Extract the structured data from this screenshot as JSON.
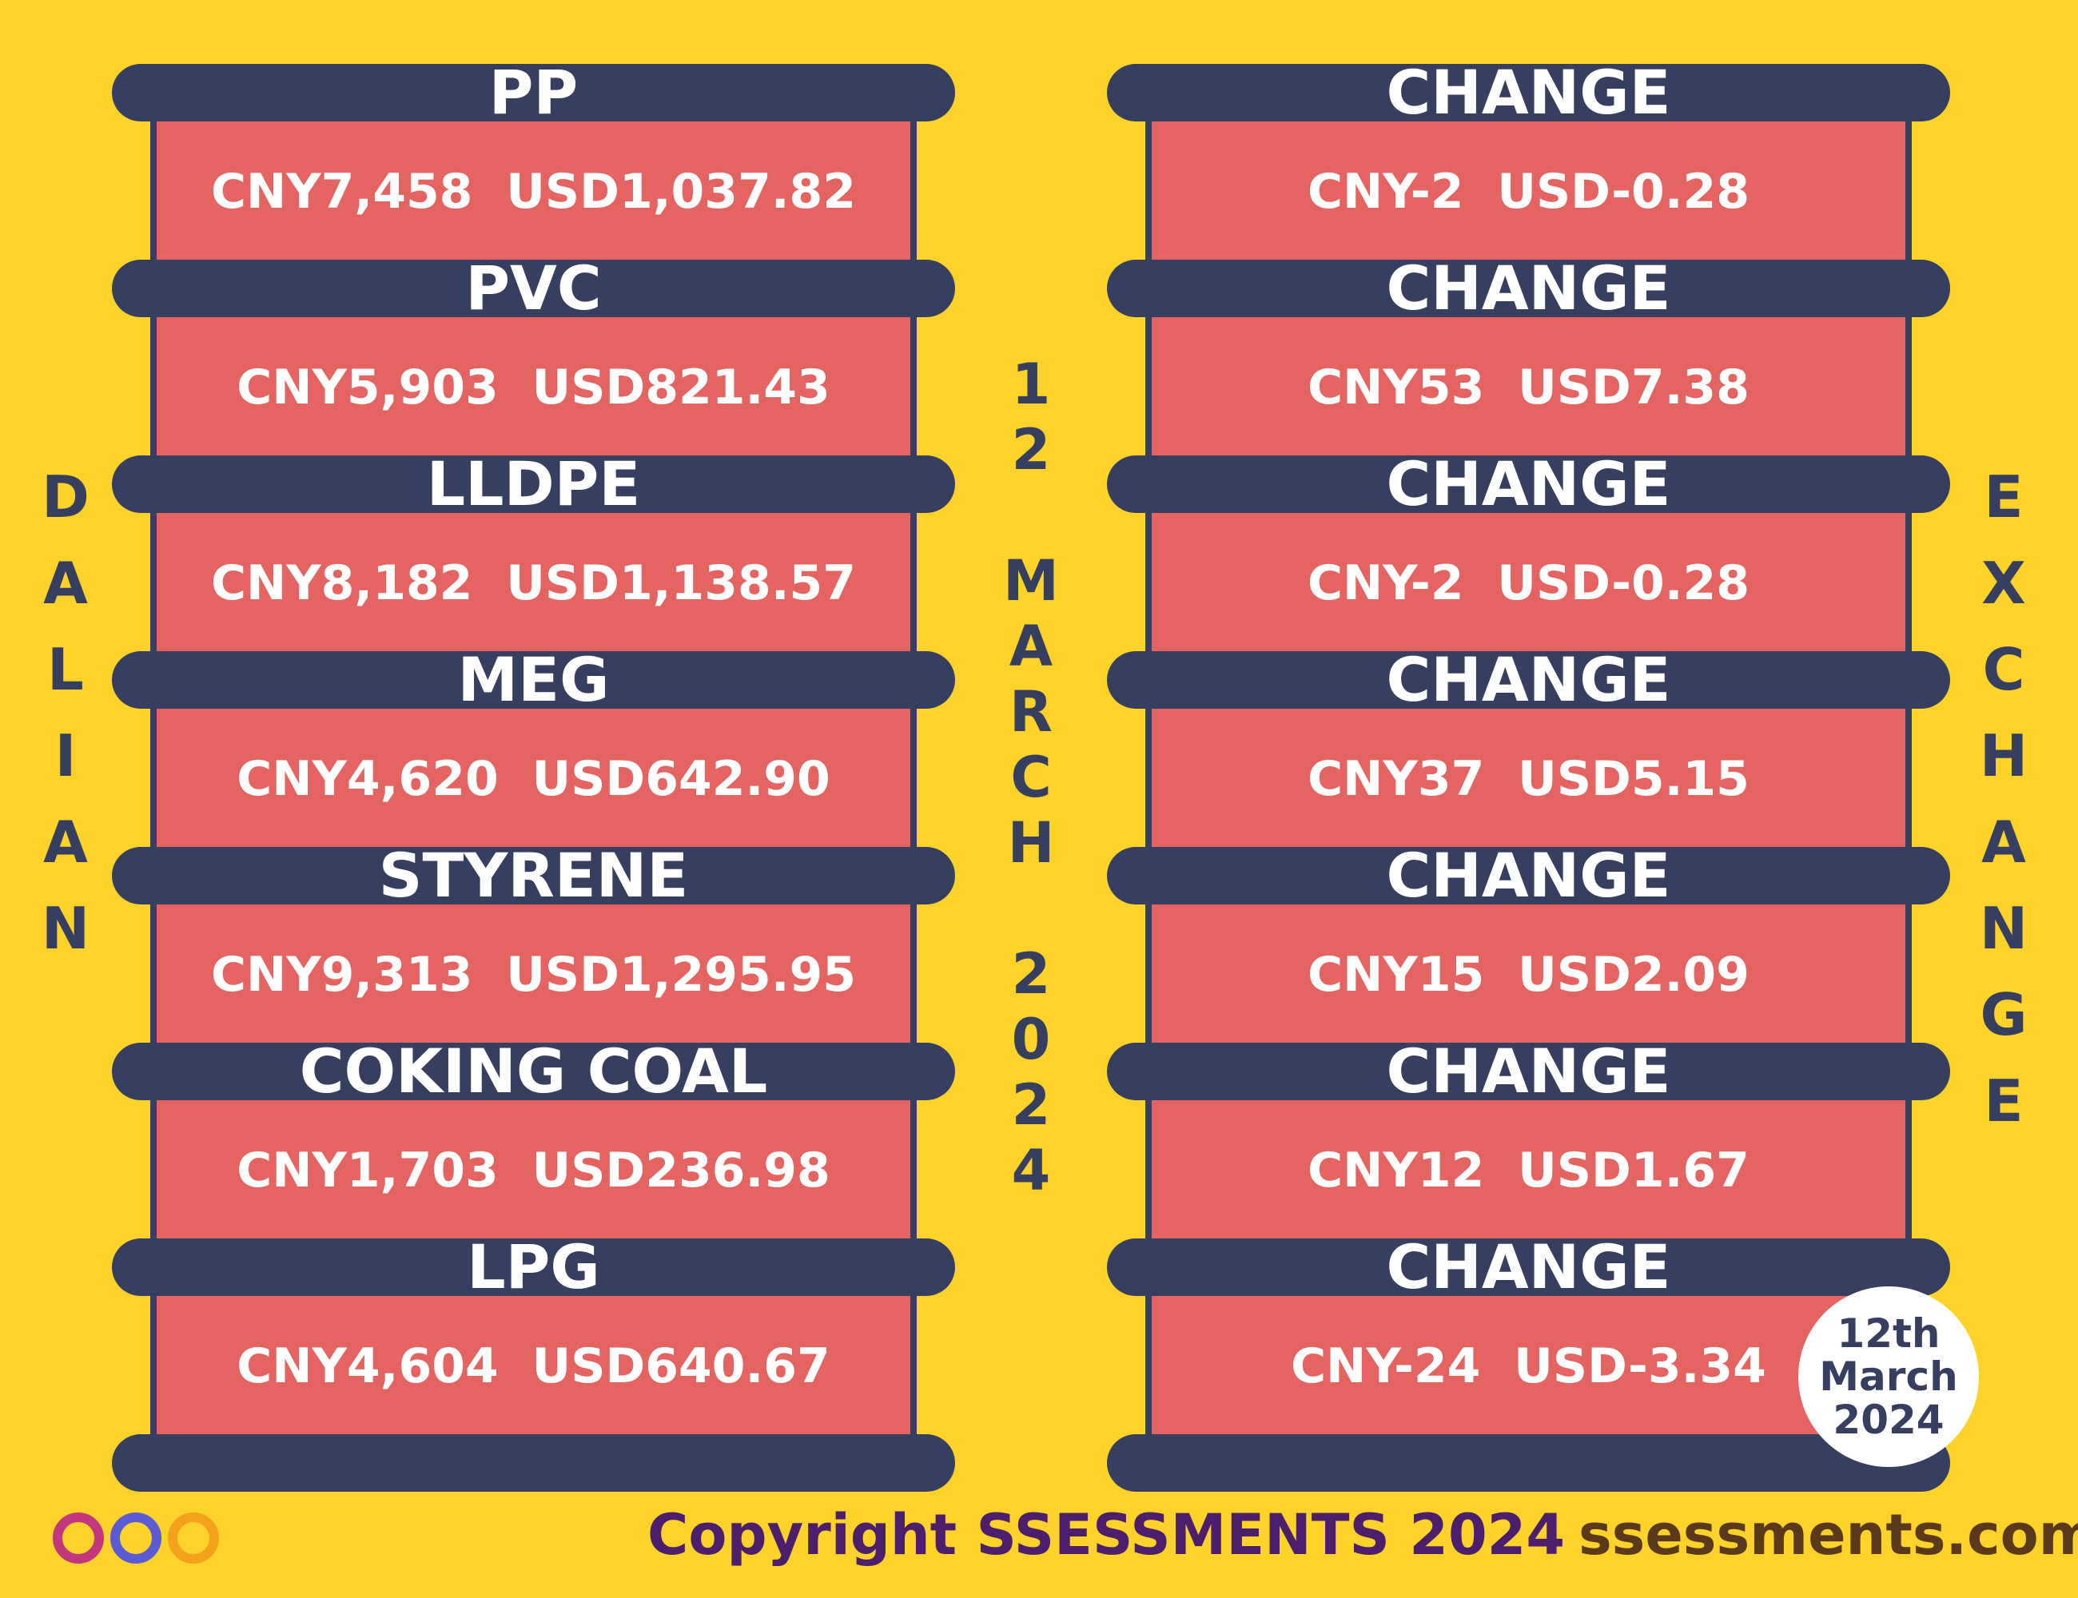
{
  "left_title": "DALIAN",
  "right_title": "EXCHANGE",
  "date_vertical": "12 MARCH 2024",
  "products": [
    {
      "name": "PP",
      "price": "CNY7,458  USD1,037.82"
    },
    {
      "name": "PVC",
      "price": "CNY5,903  USD821.43"
    },
    {
      "name": "LLDPE",
      "price": "CNY8,182  USD1,138.57"
    },
    {
      "name": "MEG",
      "price": "CNY4,620  USD642.90"
    },
    {
      "name": "STYRENE",
      "price": "CNY9,313  USD1,295.95"
    },
    {
      "name": "COKING COAL",
      "price": "CNY1,703  USD236.98"
    },
    {
      "name": "LPG",
      "price": "CNY4,604  USD640.67"
    }
  ],
  "changes": [
    {
      "label": "CHANGE",
      "value": "CNY-2  USD-0.28"
    },
    {
      "label": "CHANGE",
      "value": "CNY53  USD7.38"
    },
    {
      "label": "CHANGE",
      "value": "CNY-2  USD-0.28"
    },
    {
      "label": "CHANGE",
      "value": "CNY37  USD5.15"
    },
    {
      "label": "CHANGE",
      "value": "CNY15  USD2.09"
    },
    {
      "label": "CHANGE",
      "value": "CNY12  USD1.67"
    },
    {
      "label": "CHANGE",
      "value": "CNY-24  USD-3.34"
    }
  ],
  "badge": [
    "12th",
    "March",
    "2024"
  ],
  "footer": {
    "copyright": "Copyright SSESSMENTS 2024",
    "website": "ssessments.com"
  }
}
